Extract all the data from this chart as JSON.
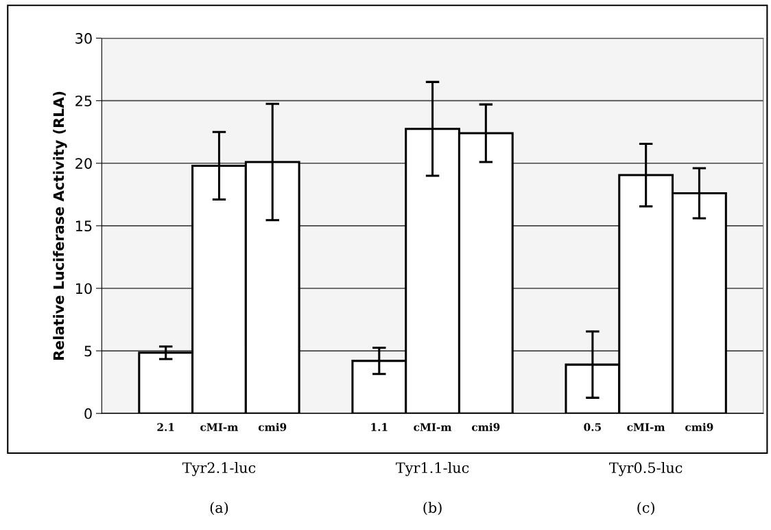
{
  "chart_data": {
    "type": "bar",
    "ylabel": "Relative Luciferase Activity (RLA)",
    "categories": [
      "2.1",
      "cMI-m",
      "cmi9",
      null,
      "1.1",
      "cMI-m",
      "cmi9",
      null,
      "0.5",
      "cMI-m",
      "cmi9"
    ],
    "series": [
      {
        "color": "#ffffff",
        "values": [
          4.85,
          19.8,
          20.1,
          null,
          4.2,
          22.75,
          22.4,
          null,
          3.9,
          19.05,
          17.6
        ],
        "errors": [
          0.5,
          2.7,
          4.65,
          null,
          1.05,
          3.75,
          2.3,
          null,
          2.65,
          2.5,
          2.0
        ]
      }
    ],
    "ylim": [
      0,
      30
    ],
    "yticks": [
      0,
      5,
      10,
      15,
      20,
      25,
      30
    ],
    "grid": "y",
    "annotations": [
      "Tyr2.1-luc",
      "Tyr1.1-luc",
      "Tyr0.5-luc",
      "(a)",
      "(b)",
      "(c)"
    ]
  }
}
